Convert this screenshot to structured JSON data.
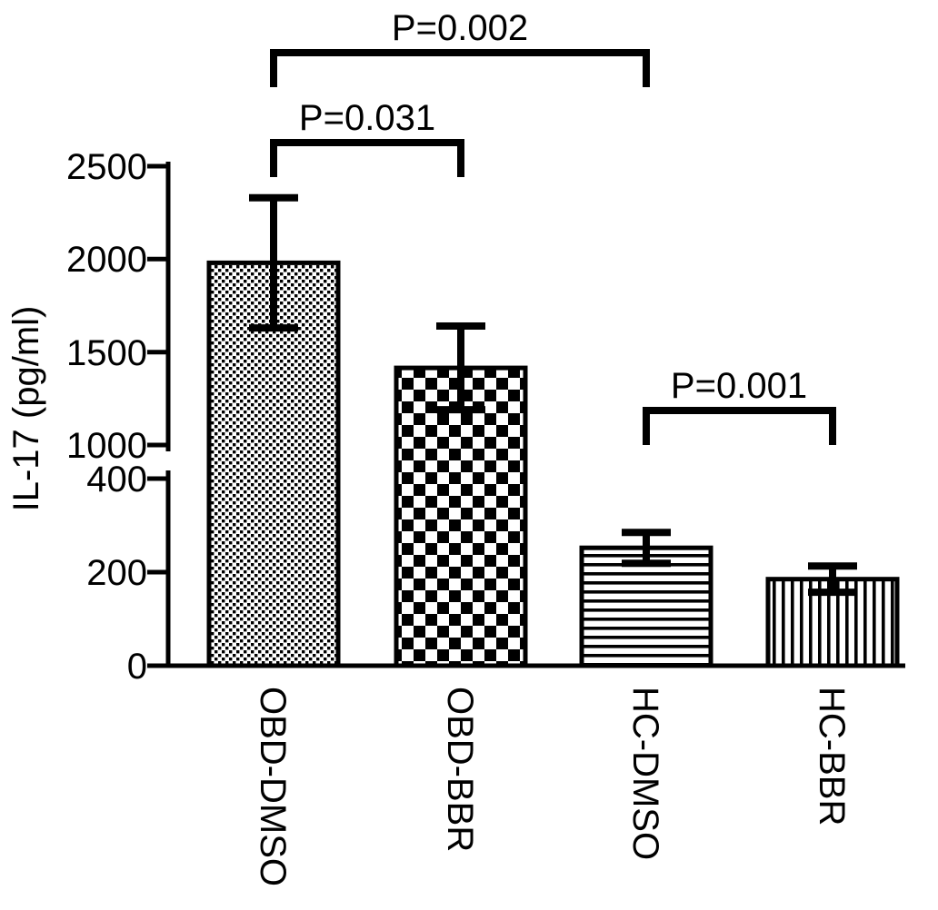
{
  "chart_data": {
    "type": "bar",
    "title": "",
    "ylabel": "IL-17 (pg/ml)",
    "xlabel": "",
    "categories": [
      "OBD-DMSO",
      "OBD-BBR",
      "HC-DMSO",
      "HC-BBR"
    ],
    "values": [
      1980,
      1415,
      252,
      185
    ],
    "errors": [
      350,
      225,
      33,
      28
    ],
    "bar_patterns": [
      "fine-dots",
      "checkerboard",
      "horizontal-lines",
      "vertical-lines"
    ],
    "axis_break": {
      "upper": {
        "range": [
          1000,
          2500
        ],
        "ticks": [
          1000,
          1500,
          2000,
          2500
        ]
      },
      "lower": {
        "range": [
          0,
          400
        ],
        "ticks": [
          0,
          200,
          400
        ]
      }
    },
    "significance": [
      {
        "label": "P=0.002",
        "from": "OBD-DMSO",
        "to": "HC-DMSO",
        "from_index": 0,
        "to_index": 2,
        "level": "top"
      },
      {
        "label": "P=0.031",
        "from": "OBD-DMSO",
        "to": "OBD-BBR",
        "from_index": 0,
        "to_index": 1,
        "level": "mid"
      },
      {
        "label": "P=0.001",
        "from": "HC-DMSO",
        "to": "HC-BBR",
        "from_index": 2,
        "to_index": 3,
        "level": "low"
      }
    ],
    "legend": "none",
    "grid": false,
    "colors": {
      "stroke": "#000000",
      "bar_fill": "#ffffff",
      "background": "#ffffff",
      "text": "#000000"
    }
  }
}
